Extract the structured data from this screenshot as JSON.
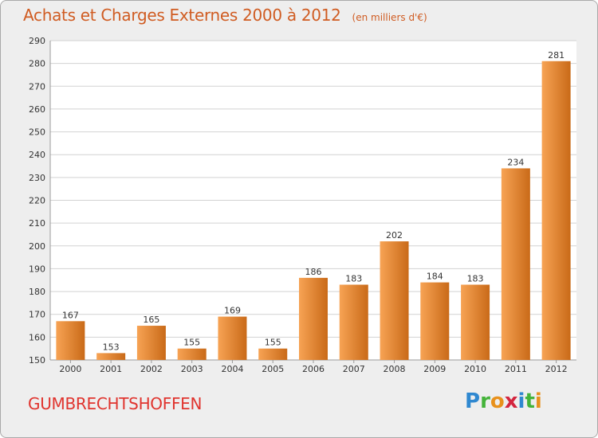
{
  "header": {
    "title": "Achats et Charges Externes 2000 à 2012",
    "subtitle": "(en milliers d'€)"
  },
  "footer": {
    "commune": "GUMBRECHTSHOFFEN",
    "logo": "Proxiti"
  },
  "colors": {
    "bar_light": "#f7a354",
    "bar_dark": "#c96a18",
    "title": "#d05c22",
    "commune": "#e0342e"
  },
  "chart_data": {
    "type": "bar",
    "categories": [
      "2000",
      "2001",
      "2002",
      "2003",
      "2004",
      "2005",
      "2006",
      "2007",
      "2008",
      "2009",
      "2010",
      "2011",
      "2012"
    ],
    "values": [
      167,
      153,
      165,
      155,
      169,
      155,
      186,
      183,
      202,
      184,
      183,
      234,
      281
    ],
    "ylim": [
      150,
      290
    ],
    "yticks": [
      150,
      160,
      170,
      180,
      190,
      200,
      210,
      220,
      230,
      240,
      250,
      260,
      270,
      280,
      290
    ],
    "grid": true
  }
}
